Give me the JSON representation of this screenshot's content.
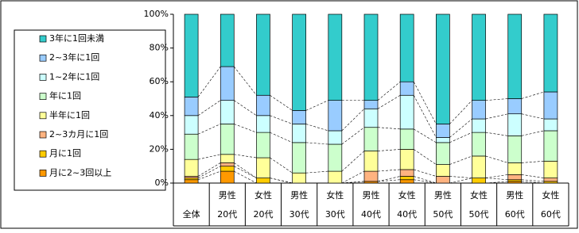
{
  "chart_data": {
    "type": "stacked-bar-100",
    "categories": [
      [
        "全体"
      ],
      [
        "男性",
        "20代"
      ],
      [
        "女性",
        "20代"
      ],
      [
        "男性",
        "30代"
      ],
      [
        "女性",
        "30代"
      ],
      [
        "男性",
        "40代"
      ],
      [
        "女性",
        "40代"
      ],
      [
        "男性",
        "50代"
      ],
      [
        "女性",
        "50代"
      ],
      [
        "男性",
        "60代"
      ],
      [
        "女性",
        "60代"
      ]
    ],
    "series": [
      {
        "name": "月に2~3回以上",
        "color": "#FF9900",
        "values": [
          2,
          7,
          0,
          0,
          0,
          1,
          2,
          0,
          0,
          1,
          0
        ]
      },
      {
        "name": "月に1回",
        "color": "#FFCC00",
        "values": [
          1,
          3,
          3,
          0,
          0,
          0,
          2,
          0,
          3,
          1,
          1
        ]
      },
      {
        "name": "2~3カ月に1回",
        "color": "#FFB380",
        "values": [
          1,
          2,
          0,
          0,
          0,
          6,
          4,
          4,
          0,
          3,
          2
        ]
      },
      {
        "name": "半年に1回",
        "color": "#FFFF99",
        "values": [
          10,
          5,
          12,
          6,
          7,
          12,
          12,
          7,
          13,
          7,
          10
        ]
      },
      {
        "name": "年に1回",
        "color": "#CCFFCC",
        "values": [
          15,
          18,
          15,
          18,
          16,
          14,
          12,
          13,
          14,
          16,
          18
        ]
      },
      {
        "name": "1~2年に1回",
        "color": "#CCFFFF",
        "values": [
          11,
          14,
          10,
          11,
          8,
          11,
          20,
          3,
          8,
          13,
          7
        ]
      },
      {
        "name": "2~3年に1回",
        "color": "#99CCFF",
        "values": [
          11,
          20,
          12,
          8,
          18,
          5,
          8,
          8,
          11,
          9,
          16
        ]
      },
      {
        "name": "3年に1回未満",
        "color": "#33CCCC",
        "values": [
          49,
          31,
          48,
          57,
          51,
          51,
          40,
          65,
          51,
          50,
          46
        ]
      }
    ],
    "ylim": [
      0,
      100
    ],
    "yticks": [
      {
        "value": 0,
        "label": "0%"
      },
      {
        "value": 20,
        "label": "20%"
      },
      {
        "value": 40,
        "label": "40%"
      },
      {
        "value": 60,
        "label": "60%"
      },
      {
        "value": 80,
        "label": "80%"
      },
      {
        "value": 100,
        "label": "100%"
      }
    ],
    "legend": "left"
  }
}
